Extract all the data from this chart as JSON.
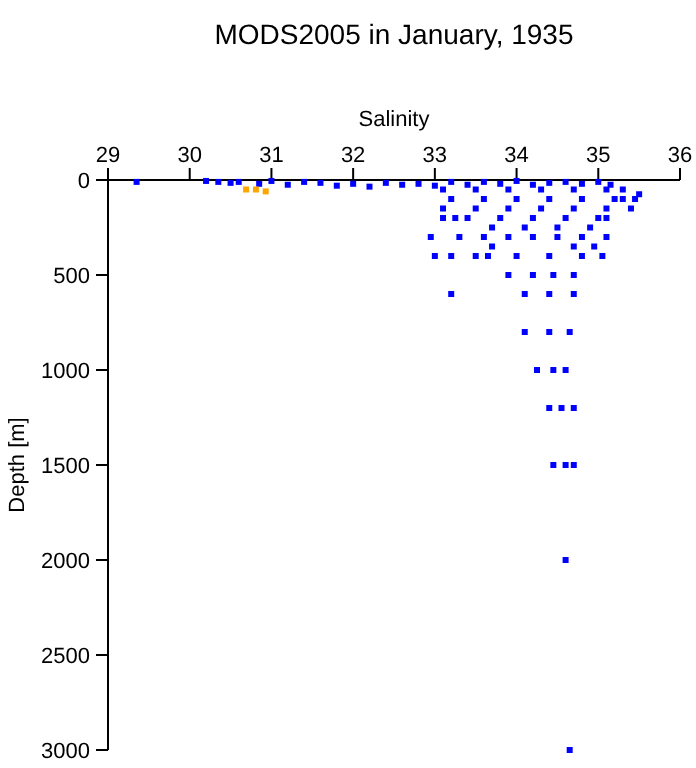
{
  "chart_data": {
    "type": "scatter",
    "title": "MODS2005 in January, 1935",
    "xlabel": "Salinity",
    "ylabel": "Depth [m]",
    "xlim": [
      29,
      36
    ],
    "xticks": [
      29,
      30,
      31,
      32,
      33,
      34,
      35,
      36
    ],
    "ylim": [
      3000,
      0
    ],
    "yticks": [
      0,
      500,
      1000,
      1500,
      2000,
      2500,
      3000
    ],
    "grid": false,
    "marker": "square",
    "series": [
      {
        "color": "#0000ff",
        "x": [
          29.35,
          30.2,
          30.35,
          30.5,
          30.6,
          30.85,
          31.0,
          31.2,
          31.4,
          31.6,
          31.8,
          32.0,
          32.2,
          32.4,
          32.6,
          32.8,
          33.0,
          33.2,
          33.4,
          33.6,
          33.8,
          34.0,
          34.2,
          34.4,
          34.6,
          34.8,
          35.0,
          35.15,
          33.1,
          33.5,
          33.9,
          34.3,
          34.7,
          35.1,
          35.3,
          35.5,
          33.2,
          33.6,
          34.0,
          34.4,
          34.8,
          35.2,
          35.3,
          35.45,
          33.1,
          33.5,
          33.9,
          34.3,
          34.7,
          35.1,
          35.4,
          33.1,
          33.25,
          33.4,
          33.8,
          34.2,
          34.6,
          35.0,
          35.1,
          33.7,
          34.1,
          34.5,
          34.9,
          32.95,
          33.3,
          33.6,
          33.9,
          34.2,
          34.5,
          34.8,
          35.1,
          33.7,
          34.7,
          34.95,
          33.0,
          33.2,
          33.5,
          33.65,
          34.0,
          34.4,
          34.8,
          35.05,
          33.9,
          34.2,
          34.45,
          34.7,
          33.2,
          34.1,
          34.4,
          34.7,
          34.1,
          34.4,
          34.65,
          34.25,
          34.45,
          34.6,
          34.4,
          34.55,
          34.7,
          34.45,
          34.6,
          34.7,
          34.6,
          34.65
        ],
        "values": [
          10,
          5,
          10,
          15,
          10,
          20,
          5,
          25,
          10,
          15,
          30,
          20,
          35,
          15,
          25,
          20,
          30,
          10,
          25,
          10,
          20,
          5,
          25,
          15,
          10,
          20,
          10,
          25,
          50,
          50,
          50,
          50,
          50,
          50,
          50,
          75,
          100,
          100,
          100,
          100,
          100,
          100,
          100,
          100,
          150,
          150,
          150,
          150,
          150,
          150,
          150,
          200,
          200,
          200,
          200,
          200,
          200,
          200,
          200,
          250,
          250,
          250,
          250,
          300,
          300,
          300,
          300,
          300,
          300,
          300,
          300,
          350,
          350,
          350,
          400,
          400,
          400,
          400,
          400,
          400,
          400,
          400,
          500,
          500,
          500,
          500,
          600,
          600,
          600,
          600,
          800,
          800,
          800,
          1000,
          1000,
          1000,
          1200,
          1200,
          1200,
          1500,
          1500,
          1500,
          2000,
          3000
        ]
      },
      {
        "color": "#ffa500",
        "x": [
          30.69,
          30.81,
          30.93
        ],
        "values": [
          50,
          50,
          60
        ]
      }
    ]
  }
}
